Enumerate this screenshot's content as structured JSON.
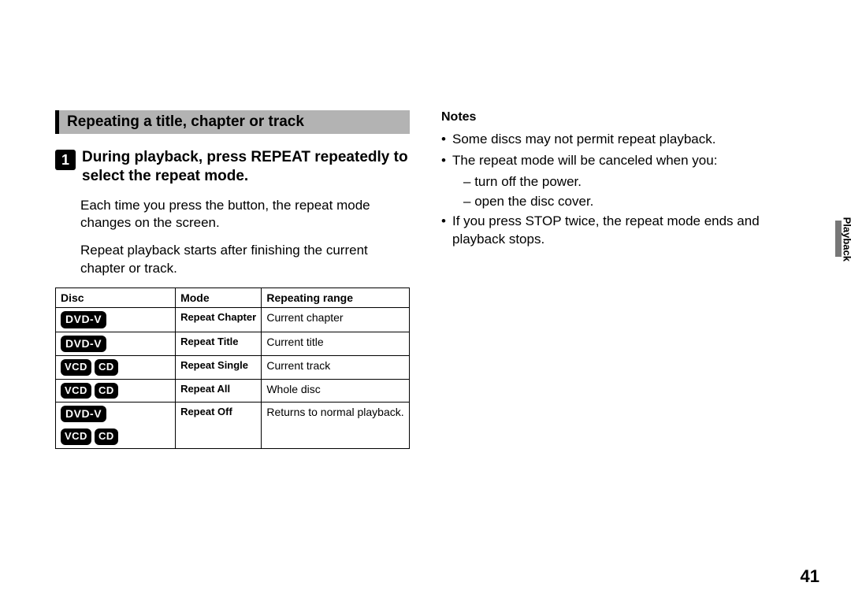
{
  "section_title": "Repeating a title, chapter or track",
  "step": {
    "number": "1",
    "instruction": "During playback, press REPEAT repeatedly to select the repeat mode."
  },
  "paragraphs": [
    "Each time you press the button, the repeat mode changes on the screen.",
    "Repeat playback starts after finishing the current chapter or track."
  ],
  "table": {
    "columns": [
      "Disc",
      "Mode",
      "Repeating range"
    ],
    "rows": [
      {
        "discs": [
          "DVD-V"
        ],
        "mode": "Repeat Chapter",
        "range": "Current chapter"
      },
      {
        "discs": [
          "DVD-V"
        ],
        "mode": "Repeat Title",
        "range": "Current title"
      },
      {
        "discs": [
          "VCD",
          "CD"
        ],
        "mode": "Repeat Single",
        "range": "Current track"
      },
      {
        "discs": [
          "VCD",
          "CD"
        ],
        "mode": "Repeat All",
        "range": "Whole disc"
      },
      {
        "discs": [
          "DVD-V",
          "VCD",
          "CD"
        ],
        "mode": "Repeat Off",
        "range": "Returns to normal playback."
      }
    ]
  },
  "notes": {
    "heading": "Notes",
    "items": [
      {
        "text": "Some discs may not permit repeat playback."
      },
      {
        "text": "The repeat mode will be canceled when you:",
        "sub": [
          "turn off the power.",
          "open the disc cover."
        ]
      },
      {
        "text": "If you press STOP twice, the repeat mode ends and playback stops."
      }
    ]
  },
  "side_tab": "Playback",
  "page_number": "41"
}
